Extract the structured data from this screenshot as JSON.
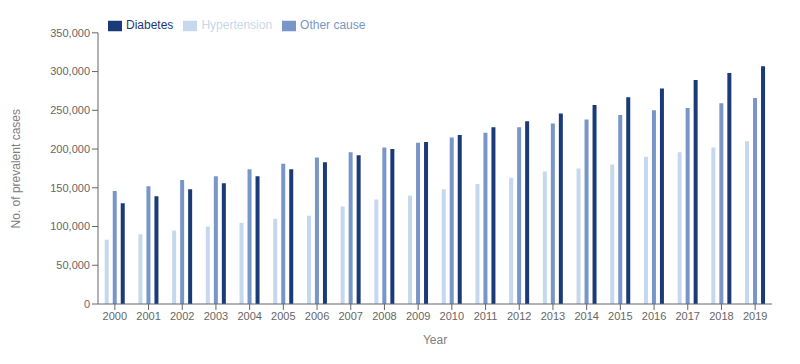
{
  "chart_data": {
    "type": "bar",
    "xlabel": "Year",
    "ylabel": "No. of prevalent cases",
    "categories": [
      "2000",
      "2001",
      "2002",
      "2003",
      "2004",
      "2005",
      "2006",
      "2007",
      "2008",
      "2009",
      "2010",
      "2011",
      "2012",
      "2013",
      "2014",
      "2015",
      "2016",
      "2017",
      "2018",
      "2019"
    ],
    "series": [
      {
        "name": "Hypertension",
        "color": "#c5d8ed",
        "values": [
          83000,
          90000,
          95000,
          100000,
          105000,
          110000,
          114000,
          126000,
          135000,
          140000,
          148000,
          155000,
          163000,
          171000,
          175000,
          180000,
          190000,
          196000,
          202000,
          210000
        ]
      },
      {
        "name": "Other cause",
        "color": "#7896c8",
        "values": [
          146000,
          152000,
          160000,
          165000,
          174000,
          181000,
          189000,
          196000,
          202000,
          208000,
          215000,
          221000,
          228000,
          233000,
          238000,
          244000,
          250000,
          253000,
          259000,
          266000
        ]
      },
      {
        "name": "Diabetes",
        "color": "#1a3a78",
        "values": [
          130000,
          139000,
          148000,
          156000,
          165000,
          174000,
          183000,
          192000,
          200000,
          209000,
          218000,
          228000,
          236000,
          246000,
          257000,
          267000,
          278000,
          289000,
          298000,
          307000
        ]
      }
    ],
    "ylim": [
      0,
      350000
    ],
    "yticks": [
      0,
      {
        "value": 50000,
        "label": "50,000"
      },
      {
        "value": 100000,
        "label": "100,000"
      },
      {
        "value": 150000,
        "label": "150,000"
      },
      {
        "value": 200000,
        "label": "200,000"
      },
      {
        "value": 250000,
        "label": "250,000"
      },
      {
        "value": 300000,
        "label": "300,000"
      },
      {
        "value": 350000,
        "label": "350,000"
      }
    ],
    "legend": "upper left",
    "grid": false
  }
}
